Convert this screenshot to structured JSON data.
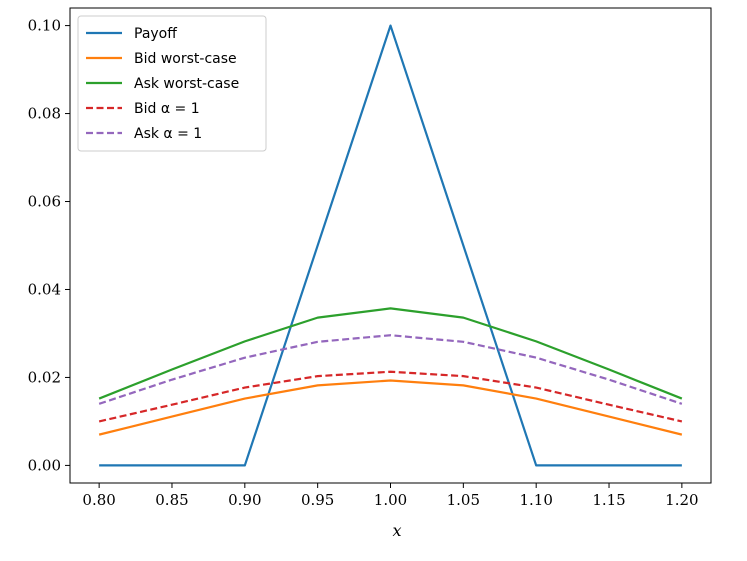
{
  "chart_data": {
    "type": "line",
    "title": "",
    "xlabel": "x",
    "ylabel": "",
    "xlim": [
      0.78,
      1.22
    ],
    "ylim": [
      -0.004,
      0.104
    ],
    "xticks": [
      0.8,
      0.85,
      0.9,
      0.95,
      1.0,
      1.05,
      1.1,
      1.15,
      1.2
    ],
    "xtick_labels": [
      "0.80",
      "0.85",
      "0.90",
      "0.95",
      "1.00",
      "1.05",
      "1.10",
      "1.15",
      "1.20"
    ],
    "yticks": [
      0.0,
      0.02,
      0.04,
      0.06,
      0.08,
      0.1
    ],
    "ytick_labels": [
      "0.00",
      "0.02",
      "0.04",
      "0.06",
      "0.08",
      "0.10"
    ],
    "grid": false,
    "legend_position": "top-left",
    "series": [
      {
        "name": "Payoff",
        "style": "solid",
        "color": "#1f77b4",
        "x": [
          0.8,
          0.9,
          1.0,
          1.1,
          1.2
        ],
        "y": [
          0.0,
          0.0,
          0.1,
          0.0,
          0.0
        ]
      },
      {
        "name": "Bid worst-case",
        "style": "solid",
        "color": "#ff7f0e",
        "x": [
          0.8,
          0.85,
          0.9,
          0.95,
          1.0,
          1.05,
          1.1,
          1.15,
          1.2
        ],
        "y": [
          0.007,
          0.0111,
          0.0152,
          0.0182,
          0.0193,
          0.0182,
          0.0152,
          0.0111,
          0.007
        ]
      },
      {
        "name": "Ask worst-case",
        "style": "solid",
        "color": "#2ca02c",
        "x": [
          0.8,
          0.85,
          0.9,
          0.95,
          1.0,
          1.05,
          1.1,
          1.15,
          1.2
        ],
        "y": [
          0.0152,
          0.0218,
          0.0282,
          0.0336,
          0.0357,
          0.0336,
          0.0282,
          0.0218,
          0.0152
        ]
      },
      {
        "name": "Bid α = 1",
        "style": "dashed",
        "color": "#d62728",
        "x": [
          0.8,
          0.85,
          0.9,
          0.95,
          1.0,
          1.05,
          1.1,
          1.15,
          1.2
        ],
        "y": [
          0.01,
          0.0138,
          0.0177,
          0.0203,
          0.0213,
          0.0203,
          0.0177,
          0.0138,
          0.01
        ]
      },
      {
        "name": "Ask α = 1",
        "style": "dashed",
        "color": "#9467bd",
        "x": [
          0.8,
          0.85,
          0.9,
          0.95,
          1.0,
          1.05,
          1.1,
          1.15,
          1.2
        ],
        "y": [
          0.014,
          0.0195,
          0.0245,
          0.0281,
          0.0296,
          0.0281,
          0.0245,
          0.0195,
          0.014
        ]
      }
    ]
  }
}
